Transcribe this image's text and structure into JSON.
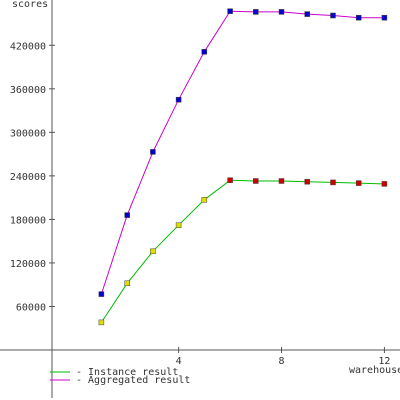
{
  "chart_data": {
    "type": "line",
    "ylabel": "scores",
    "xlabel": "warehouses",
    "x": [
      1,
      2,
      3,
      4,
      5,
      6,
      7,
      8,
      9,
      10,
      11,
      12
    ],
    "xticks": [
      4,
      8,
      12
    ],
    "yticks": [
      60000,
      120000,
      180000,
      240000,
      300000,
      360000,
      420000
    ],
    "xlim": [
      -1,
      12.8
    ],
    "ylim": [
      0,
      470000
    ],
    "grid": false,
    "legend_position": "bottom-left",
    "series": [
      {
        "name": "Instance result",
        "color": "#00bb00",
        "marker_colors": [
          "#dddd00",
          "#dddd00",
          "#dddd00",
          "#dddd00",
          "#dddd00",
          "#cc0000",
          "#cc0000",
          "#cc0000",
          "#cc0000",
          "#cc0000",
          "#cc0000",
          "#cc0000"
        ],
        "values": [
          38000,
          92000,
          136000,
          172000,
          207000,
          234000,
          233000,
          233000,
          232000,
          231000,
          230000,
          229000
        ]
      },
      {
        "name": "Aggregated result",
        "color": "#cc00cc",
        "marker_colors": [
          "#0000cc",
          "#0000cc",
          "#0000cc",
          "#0000cc",
          "#0000cc",
          "#0000cc",
          "#0000cc",
          "#0000cc",
          "#0000cc",
          "#0000cc",
          "#0000cc",
          "#0000cc"
        ],
        "values": [
          77000,
          186000,
          273000,
          345000,
          411000,
          467000,
          466000,
          466000,
          463000,
          461000,
          458000,
          458000
        ]
      }
    ]
  }
}
